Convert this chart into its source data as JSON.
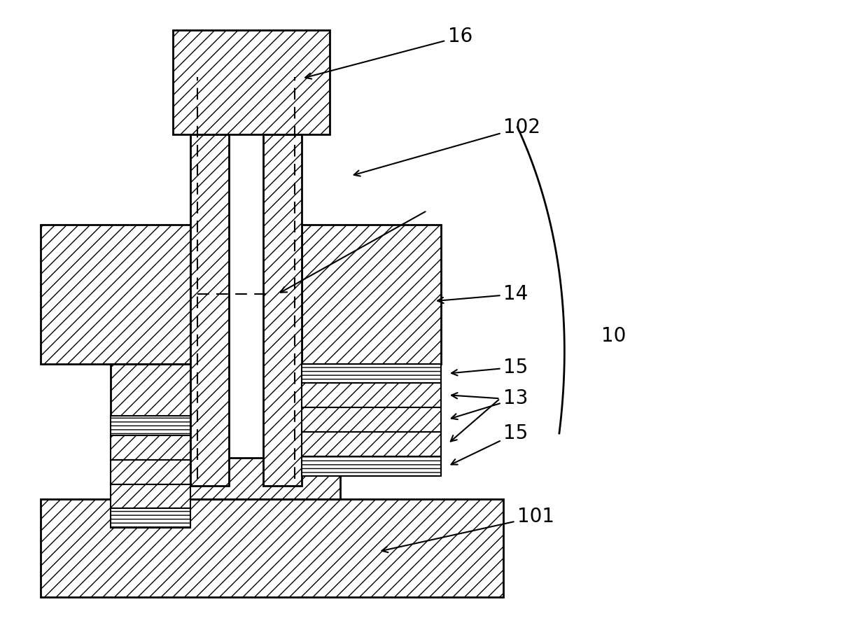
{
  "bg_color": "#ffffff",
  "line_color": "#000000",
  "figsize": [
    12.4,
    9.1
  ],
  "dpi": 100,
  "lw": 2.0,
  "fontsize": 20
}
